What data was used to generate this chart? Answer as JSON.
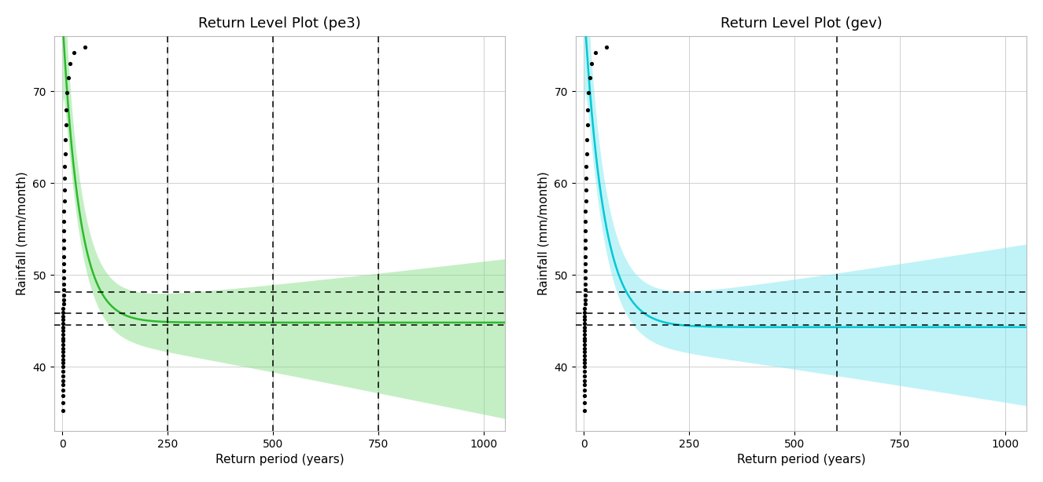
{
  "title_pe3": "Return Level Plot (pe3)",
  "title_gev": "Return Level Plot (gev)",
  "xlabel": "Return period (years)",
  "ylabel": "Rainfall (mm/month)",
  "xlim": [
    -20,
    1050
  ],
  "ylim": [
    33,
    76
  ],
  "yticks": [
    40,
    50,
    60,
    70
  ],
  "xticks": [
    0,
    250,
    500,
    750,
    1000
  ],
  "highlight_levels": [
    48.09,
    45.83,
    44.56
  ],
  "pe3_curve_color": "#2db92d",
  "pe3_ci_color": "#7ddd7d",
  "pe3_ci_alpha": 0.45,
  "gev_curve_color": "#00c8d4",
  "gev_ci_color": "#80e8f0",
  "gev_ci_alpha": 0.5,
  "pe3_vlines": [
    250,
    500,
    750
  ],
  "gev_vlines": [
    600
  ],
  "background_color": "#ffffff",
  "grid_color": "#d0d0d0",
  "title_fontsize": 13,
  "label_fontsize": 11,
  "tick_fontsize": 10
}
